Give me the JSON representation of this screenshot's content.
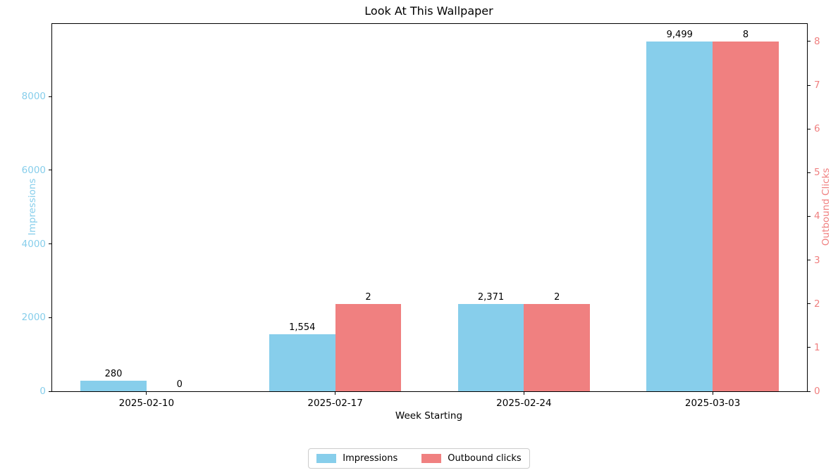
{
  "chart_data": {
    "type": "bar",
    "title": "Look At This Wallpaper",
    "xlabel": "Week Starting",
    "ylabel_left": "Impressions",
    "ylabel_right": "Outbound Clicks",
    "categories": [
      "2025-02-10",
      "2025-02-17",
      "2025-02-24",
      "2025-03-03"
    ],
    "series": [
      {
        "name": "Impressions",
        "axis": "left",
        "color": "#87CEEB",
        "values": [
          280,
          1554,
          2371,
          9499
        ],
        "value_labels": [
          "280",
          "1,554",
          "2,371",
          "9,499"
        ]
      },
      {
        "name": "Outbound clicks",
        "axis": "right",
        "color": "#F08080",
        "values": [
          0,
          2,
          2,
          8
        ],
        "value_labels": [
          "0",
          "2",
          "2",
          "8"
        ]
      }
    ],
    "left_axis": {
      "ticks": [
        0,
        2000,
        4000,
        6000,
        8000
      ],
      "range": [
        0,
        9974
      ],
      "color": "#87CEEB"
    },
    "right_axis": {
      "ticks": [
        0,
        1,
        2,
        3,
        4,
        5,
        6,
        7,
        8
      ],
      "range": [
        0,
        8.4
      ],
      "color": "#F08080"
    },
    "legend": {
      "position": "bottom-center",
      "items": [
        {
          "label": "Impressions",
          "color": "#87CEEB"
        },
        {
          "label": "Outbound clicks",
          "color": "#F08080"
        }
      ]
    },
    "grid": false,
    "bar_width_fraction": 0.35
  }
}
